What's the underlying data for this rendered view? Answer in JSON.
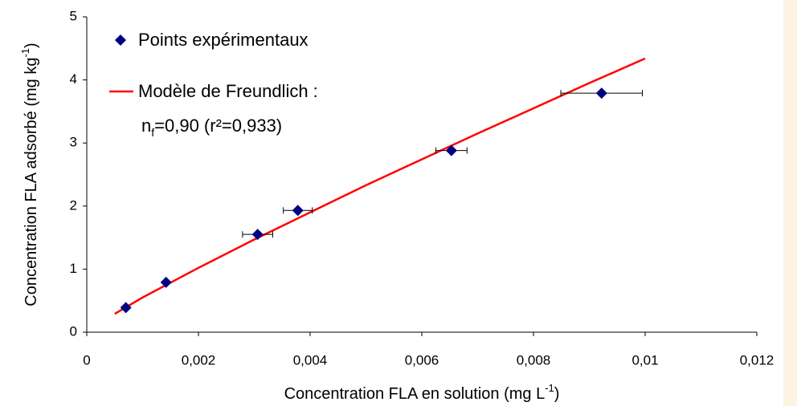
{
  "chart_data": {
    "type": "scatter",
    "x_label": [
      "Concentration FLA en solution (mg L",
      "-1",
      ")"
    ],
    "y_label": [
      "Concentration FLA adsorbé (mg kg",
      "-1",
      ")"
    ],
    "xlim": [
      0,
      0.012
    ],
    "xticks": [
      0,
      {
        "value": 0.002,
        "label": "0,002"
      },
      {
        "value": 0.004,
        "label": "0,004"
      },
      {
        "value": 0.006,
        "label": "0,006"
      },
      {
        "value": 0.008,
        "label": "0,008"
      },
      {
        "value": 0.01,
        "label": "0,01"
      },
      {
        "value": 0.012,
        "label": "0,012"
      }
    ],
    "ylim": [
      0,
      5
    ],
    "yticks": [
      0,
      1,
      2,
      3,
      4,
      5
    ],
    "legend": "upper left",
    "series": [
      {
        "name": "Points expérimentaux",
        "color": "#000080",
        "marker": "diamond",
        "x": [
          0.0007,
          0.00142,
          0.00306,
          0.00378,
          0.00653,
          0.00922
        ],
        "y": [
          0.39,
          0.79,
          1.55,
          1.93,
          2.88,
          3.79
        ],
        "xerr": [
          0,
          0,
          0.00027,
          0.00026,
          0.00028,
          0.00073
        ]
      },
      {
        "name": "Modèle de Freundlich :",
        "color": "#ff0000",
        "marker": "line",
        "x": [
          0.0005,
          0.001,
          0.002,
          0.003,
          0.004,
          0.005,
          0.006,
          0.007,
          0.008,
          0.009,
          0.01
        ],
        "y": [
          0.29,
          0.55,
          1.02,
          1.47,
          1.9,
          2.33,
          2.74,
          3.15,
          3.55,
          3.95,
          4.34
        ]
      }
    ],
    "annotation": [
      "n",
      "f",
      "=0,90 (r²=0,933)"
    ]
  }
}
